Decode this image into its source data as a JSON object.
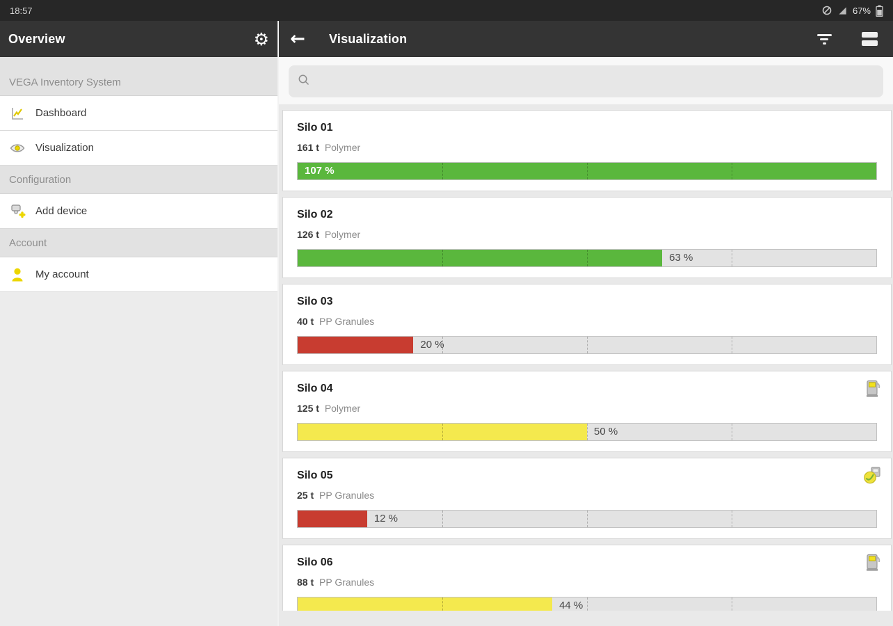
{
  "status_bar": {
    "time": "18:57",
    "battery_percent": "67%",
    "icons": [
      "network-icon",
      "signal-icon",
      "battery-icon"
    ]
  },
  "left_header": {
    "title": "Overview",
    "gear_icon": "gear-icon"
  },
  "right_header": {
    "title": "Visualization",
    "back_icon": "back-arrow-icon",
    "filter_icon": "filter-icon",
    "menu_icon": "menu-icon"
  },
  "sidebar": {
    "entries": [
      {
        "type": "header",
        "label": "VEGA Inventory System",
        "tall": true
      },
      {
        "type": "item",
        "label": "Dashboard",
        "icon": "chart-icon"
      },
      {
        "type": "item",
        "label": "Visualization",
        "icon": "eye-icon"
      },
      {
        "type": "header",
        "label": "Configuration"
      },
      {
        "type": "item",
        "label": "Add device",
        "icon": "add-device-icon"
      },
      {
        "type": "header",
        "label": "Account"
      },
      {
        "type": "item",
        "label": "My account",
        "icon": "person-icon"
      }
    ]
  },
  "search": {
    "placeholder": "",
    "value": ""
  },
  "silos": [
    {
      "name": "Silo 01",
      "amount": "161 t",
      "material": "Polymer",
      "percent": 107,
      "percent_label": "107 %",
      "color": "green",
      "badge": ""
    },
    {
      "name": "Silo 02",
      "amount": "126 t",
      "material": "Polymer",
      "percent": 63,
      "percent_label": "63 %",
      "color": "green",
      "badge": ""
    },
    {
      "name": "Silo 03",
      "amount": "40 t",
      "material": "PP Granules",
      "percent": 20,
      "percent_label": "20 %",
      "color": "red",
      "badge": ""
    },
    {
      "name": "Silo 04",
      "amount": "125 t",
      "material": "Polymer",
      "percent": 50,
      "percent_label": "50 %",
      "color": "yellow",
      "badge": "device-icon"
    },
    {
      "name": "Silo 05",
      "amount": "25 t",
      "material": "PP Granules",
      "percent": 12,
      "percent_label": "12 %",
      "color": "red",
      "badge": "device-status-icon"
    },
    {
      "name": "Silo 06",
      "amount": "88 t",
      "material": "PP Granules",
      "percent": 44,
      "percent_label": "44 %",
      "color": "yellow",
      "badge": "device-icon"
    }
  ],
  "colors": {
    "green": "#5ab73d",
    "red": "#c83c30",
    "yellow": "#f4e94e",
    "accent_yellow": "#ecd600",
    "header_dark": "#343434"
  }
}
